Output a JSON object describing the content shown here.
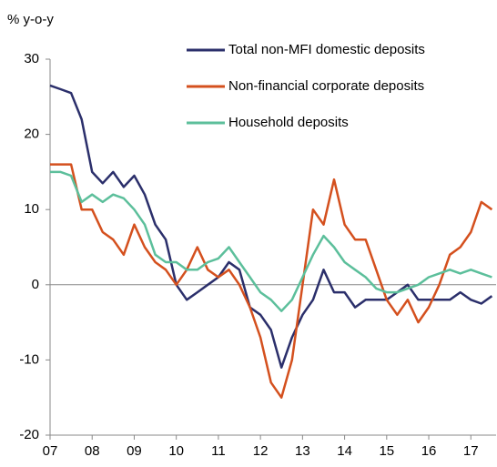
{
  "chart_data": {
    "type": "line",
    "y_label": "% y-o-y",
    "x": [
      2007.0,
      2007.25,
      2007.5,
      2007.75,
      2008.0,
      2008.25,
      2008.5,
      2008.75,
      2009.0,
      2009.25,
      2009.5,
      2009.75,
      2010.0,
      2010.25,
      2010.5,
      2010.75,
      2011.0,
      2011.25,
      2011.5,
      2011.75,
      2012.0,
      2012.25,
      2012.5,
      2012.75,
      2013.0,
      2013.25,
      2013.5,
      2013.75,
      2014.0,
      2014.25,
      2014.5,
      2014.75,
      2015.0,
      2015.25,
      2015.5,
      2015.75,
      2016.0,
      2016.25,
      2016.5,
      2016.75,
      2017.0,
      2017.25,
      2017.5
    ],
    "series": [
      {
        "name": "Total non-MFI domestic deposits",
        "color": "#2b2f6b",
        "values": [
          26.5,
          26,
          25.5,
          22,
          15,
          13.5,
          15,
          13,
          14.5,
          12,
          8,
          6,
          0,
          -2,
          -1,
          0,
          1,
          3,
          2,
          -3,
          -4,
          -6,
          -11,
          -7,
          -4,
          -2,
          2,
          -1,
          -1,
          -3,
          -2,
          -2,
          -2,
          -1,
          0,
          -2,
          -2,
          -2,
          -2,
          -1,
          -2,
          -2.5,
          -1.5
        ]
      },
      {
        "name": "Non-financial corporate deposits",
        "color": "#d4501e",
        "values": [
          16,
          16,
          16,
          10,
          10,
          7,
          6,
          4,
          8,
          5,
          3,
          2,
          0,
          2,
          5,
          2,
          1,
          2,
          0,
          -3,
          -7,
          -13,
          -15,
          -10,
          0,
          10,
          8,
          14,
          8,
          6,
          6,
          2,
          -2,
          -4,
          -2,
          -5,
          -3,
          0,
          4,
          5,
          7,
          11,
          10
        ]
      },
      {
        "name": "Household deposits",
        "color": "#5cbf9b",
        "values": [
          15,
          15,
          14.5,
          11,
          12,
          11,
          12,
          11.5,
          10,
          8,
          4,
          3,
          3,
          2,
          2,
          3,
          3.5,
          5,
          3,
          1,
          -1,
          -2,
          -3.5,
          -2,
          1,
          4,
          6.5,
          5,
          3,
          2,
          1,
          -0.5,
          -1,
          -1,
          -0.5,
          0,
          1,
          1.5,
          2,
          1.5,
          2,
          1.5,
          1
        ]
      }
    ],
    "xlim": [
      2007,
      2017.6
    ],
    "xticks": [
      {
        "value": 2007,
        "label": "07"
      },
      {
        "value": 2008,
        "label": "08"
      },
      {
        "value": 2009,
        "label": "09"
      },
      {
        "value": 2010,
        "label": "10"
      },
      {
        "value": 2011,
        "label": "11"
      },
      {
        "value": 2012,
        "label": "12"
      },
      {
        "value": 2013,
        "label": "13"
      },
      {
        "value": 2014,
        "label": "14"
      },
      {
        "value": 2015,
        "label": "15"
      },
      {
        "value": 2016,
        "label": "16"
      },
      {
        "value": 2017,
        "label": "17"
      }
    ],
    "ylim": [
      -20,
      30
    ],
    "yticks": [
      -20,
      -10,
      0,
      10,
      20,
      30
    ],
    "legend": "upper right"
  }
}
